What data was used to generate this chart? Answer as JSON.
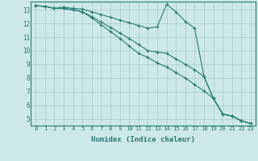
{
  "xlabel": "Humidex (Indice chaleur)",
  "ylabel": "",
  "bg_color": "#cce8e8",
  "grid_color": "#aacccc",
  "line_color": "#2a7a72",
  "xlim": [
    -0.5,
    23.5
  ],
  "ylim": [
    4.5,
    13.6
  ],
  "yticks": [
    5,
    6,
    7,
    8,
    9,
    10,
    11,
    12,
    13
  ],
  "xticks": [
    0,
    1,
    2,
    3,
    4,
    5,
    6,
    7,
    8,
    9,
    10,
    11,
    12,
    13,
    14,
    15,
    16,
    17,
    18,
    19,
    20,
    21,
    22,
    23
  ],
  "series": [
    [
      13.3,
      13.25,
      13.1,
      13.2,
      13.1,
      13.05,
      12.85,
      12.65,
      12.45,
      12.25,
      12.05,
      11.85,
      11.65,
      11.75,
      13.4,
      12.85,
      12.15,
      11.65,
      8.1,
      6.5,
      5.35,
      5.2,
      4.85,
      4.65
    ],
    [
      13.3,
      13.25,
      13.1,
      13.1,
      13.0,
      12.85,
      12.5,
      12.1,
      11.7,
      11.3,
      10.9,
      10.45,
      10.0,
      9.9,
      9.8,
      9.4,
      9.0,
      8.6,
      8.1,
      6.5,
      5.35,
      5.2,
      4.85,
      4.65
    ],
    [
      13.3,
      13.25,
      13.1,
      13.1,
      13.0,
      12.85,
      12.4,
      11.9,
      11.4,
      10.9,
      10.35,
      9.8,
      9.5,
      9.1,
      8.8,
      8.4,
      8.0,
      7.5,
      7.05,
      6.5,
      5.35,
      5.2,
      4.85,
      4.65
    ]
  ]
}
